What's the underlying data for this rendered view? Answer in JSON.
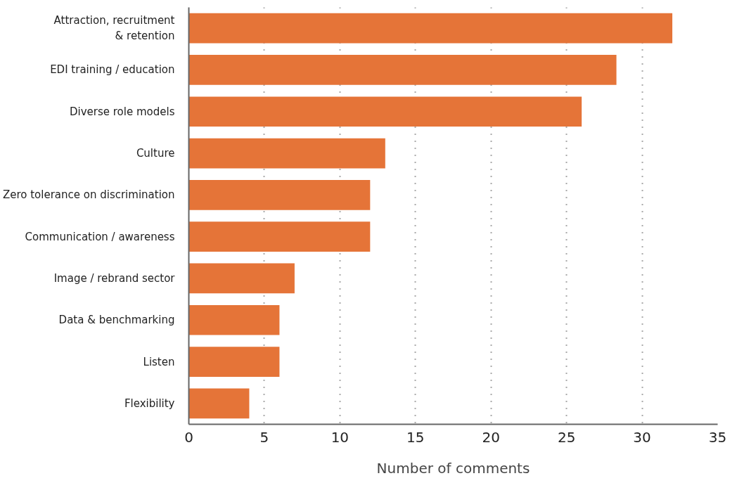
{
  "chart_data": {
    "type": "bar",
    "orientation": "horizontal",
    "xlabel": "Number of comments",
    "categories": [
      "Attraction, recruitment\n& retention",
      "EDI training / education",
      "Diverse role models",
      "Culture",
      "Zero tolerance on discrimination",
      "Communication / awareness",
      "Image / rebrand sector",
      "Data & benchmarking",
      "Listen",
      "Flexibility"
    ],
    "values": [
      32,
      28.3,
      26,
      13,
      12,
      12,
      7,
      6,
      6,
      4
    ],
    "color": "#e57438",
    "xlim": [
      0,
      35
    ],
    "xticks": [
      0,
      5,
      10,
      15,
      20,
      25,
      30,
      35
    ],
    "grid": "x",
    "line_style": "dotted"
  }
}
